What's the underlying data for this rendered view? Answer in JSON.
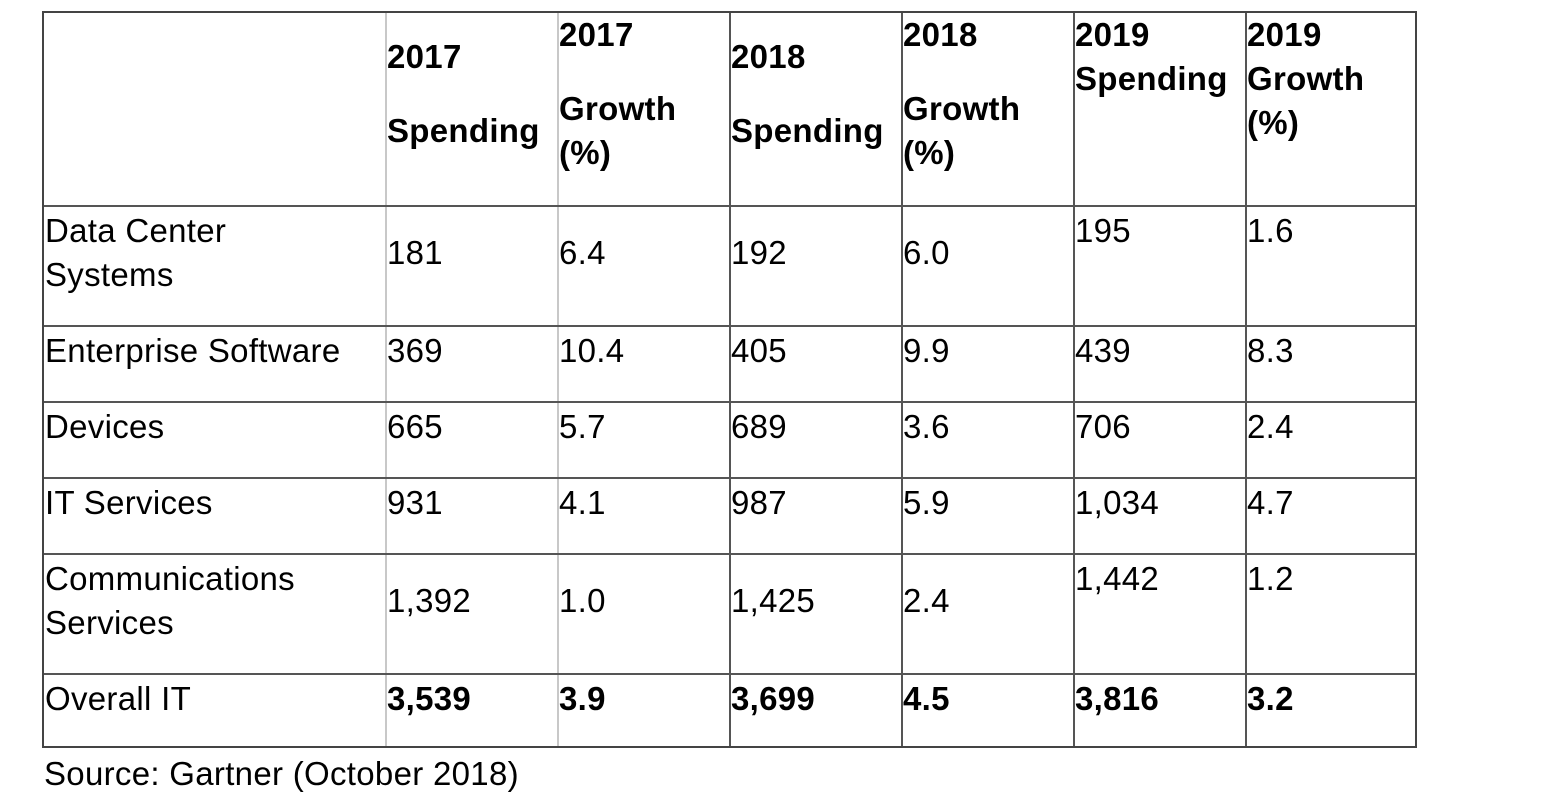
{
  "table": {
    "headers": [
      {
        "lines": [
          "2017",
          "Spending"
        ]
      },
      {
        "lines": [
          "2017",
          "Growth",
          "(%)"
        ]
      },
      {
        "lines": [
          "2018",
          "Spending"
        ]
      },
      {
        "lines": [
          "2018",
          "Growth",
          "(%)"
        ]
      },
      {
        "lines": [
          "2019",
          "Spending"
        ]
      },
      {
        "lines": [
          "2019",
          "Growth",
          "(%)"
        ]
      }
    ],
    "rows": [
      {
        "label_lines": [
          "Data Center",
          "Systems"
        ],
        "values": [
          "181",
          "6.4",
          "192",
          "6.0",
          "195",
          "1.6"
        ]
      },
      {
        "label_lines": [
          "Enterprise Software"
        ],
        "values": [
          "369",
          "10.4",
          "405",
          "9.9",
          "439",
          "8.3"
        ]
      },
      {
        "label_lines": [
          "Devices"
        ],
        "values": [
          "665",
          "5.7",
          "689",
          "3.6",
          "706",
          "2.4"
        ]
      },
      {
        "label_lines": [
          "IT Services"
        ],
        "values": [
          "931",
          "4.1",
          "987",
          "5.9",
          "1,034",
          "4.7"
        ]
      },
      {
        "label_lines": [
          "Communications",
          "Services"
        ],
        "values": [
          "1,392",
          "1.0",
          "1,425",
          "2.4",
          "1,442",
          "1.2"
        ]
      },
      {
        "label_lines": [
          "Overall IT"
        ],
        "values": [
          "3,539",
          "3.9",
          "3,699",
          "4.5",
          "3,816",
          "3.2"
        ]
      }
    ]
  },
  "source": "Source: Gartner (October 2018)"
}
